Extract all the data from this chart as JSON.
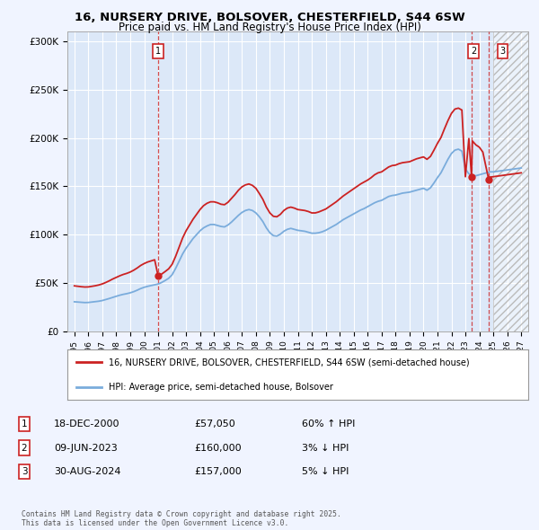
{
  "title_line1": "16, NURSERY DRIVE, BOLSOVER, CHESTERFIELD, S44 6SW",
  "title_line2": "Price paid vs. HM Land Registry's House Price Index (HPI)",
  "background_color": "#f0f4ff",
  "plot_bg_color": "#dce8f8",
  "grid_color": "#ffffff",
  "hpi_color": "#7aacdc",
  "price_color": "#cc2222",
  "legend_label_price": "16, NURSERY DRIVE, BOLSOVER, CHESTERFIELD, S44 6SW (semi-detached house)",
  "legend_label_hpi": "HPI: Average price, semi-detached house, Bolsover",
  "footer": "Contains HM Land Registry data © Crown copyright and database right 2025.\nThis data is licensed under the Open Government Licence v3.0.",
  "transactions": [
    {
      "num": 1,
      "date": "18-DEC-2000",
      "price": 57050,
      "hpi_pct": "60% ↑ HPI",
      "x_year": 2001.0
    },
    {
      "num": 2,
      "date": "09-JUN-2023",
      "price": 160000,
      "hpi_pct": "3% ↓ HPI",
      "x_year": 2023.44
    },
    {
      "num": 3,
      "date": "30-AUG-2024",
      "price": 157000,
      "hpi_pct": "5% ↓ HPI",
      "x_year": 2024.67
    }
  ],
  "hpi_data_years": [
    1995.0,
    1995.25,
    1995.5,
    1995.75,
    1996.0,
    1996.25,
    1996.5,
    1996.75,
    1997.0,
    1997.25,
    1997.5,
    1997.75,
    1998.0,
    1998.25,
    1998.5,
    1998.75,
    1999.0,
    1999.25,
    1999.5,
    1999.75,
    2000.0,
    2000.25,
    2000.5,
    2000.75,
    2001.0,
    2001.25,
    2001.5,
    2001.75,
    2002.0,
    2002.25,
    2002.5,
    2002.75,
    2003.0,
    2003.25,
    2003.5,
    2003.75,
    2004.0,
    2004.25,
    2004.5,
    2004.75,
    2005.0,
    2005.25,
    2005.5,
    2005.75,
    2006.0,
    2006.25,
    2006.5,
    2006.75,
    2007.0,
    2007.25,
    2007.5,
    2007.75,
    2008.0,
    2008.25,
    2008.5,
    2008.75,
    2009.0,
    2009.25,
    2009.5,
    2009.75,
    2010.0,
    2010.25,
    2010.5,
    2010.75,
    2011.0,
    2011.25,
    2011.5,
    2011.75,
    2012.0,
    2012.25,
    2012.5,
    2012.75,
    2013.0,
    2013.25,
    2013.5,
    2013.75,
    2014.0,
    2014.25,
    2014.5,
    2014.75,
    2015.0,
    2015.25,
    2015.5,
    2015.75,
    2016.0,
    2016.25,
    2016.5,
    2016.75,
    2017.0,
    2017.25,
    2017.5,
    2017.75,
    2018.0,
    2018.25,
    2018.5,
    2018.75,
    2019.0,
    2019.25,
    2019.5,
    2019.75,
    2020.0,
    2020.25,
    2020.5,
    2020.75,
    2021.0,
    2021.25,
    2021.5,
    2021.75,
    2022.0,
    2022.25,
    2022.5,
    2022.75,
    2023.0,
    2023.25,
    2023.5,
    2023.75,
    2024.0,
    2024.25,
    2024.5,
    2024.75,
    2025.0,
    2025.25,
    2025.5,
    2025.75,
    2026.0,
    2026.25,
    2026.5,
    2026.75,
    2027.0
  ],
  "hpi_data_values": [
    30500,
    30200,
    29900,
    29700,
    29800,
    30200,
    30600,
    31100,
    31800,
    32800,
    33900,
    35100,
    36200,
    37300,
    38200,
    38900,
    39800,
    41000,
    42500,
    44200,
    45500,
    46500,
    47300,
    48000,
    48900,
    50500,
    52500,
    54800,
    58500,
    65000,
    72500,
    80000,
    86000,
    91000,
    96000,
    100000,
    104000,
    107000,
    109000,
    110500,
    110500,
    109500,
    108500,
    108000,
    110000,
    113000,
    116500,
    120000,
    123000,
    125000,
    126000,
    125000,
    122500,
    118500,
    113500,
    107000,
    102000,
    99000,
    98500,
    100500,
    103500,
    105500,
    106500,
    105500,
    104500,
    104000,
    103500,
    102500,
    101500,
    101500,
    102000,
    103000,
    104500,
    106500,
    108500,
    110500,
    113000,
    115500,
    117500,
    119500,
    121500,
    123500,
    125500,
    127000,
    129000,
    131000,
    133000,
    134500,
    135500,
    137500,
    139500,
    140500,
    141000,
    142000,
    143000,
    143500,
    144000,
    145000,
    146000,
    147000,
    148000,
    146000,
    148500,
    153500,
    159000,
    164000,
    171000,
    178000,
    184000,
    187500,
    188500,
    186500,
    168000,
    163000,
    161000,
    161000,
    162000,
    163000,
    164000,
    165000,
    165000,
    165500,
    166000,
    166500,
    167000,
    167500,
    168000,
    168500,
    169000
  ],
  "price_hpi_years": [
    1995.0,
    1995.25,
    1995.5,
    1995.75,
    1996.0,
    1996.25,
    1996.5,
    1996.75,
    1997.0,
    1997.25,
    1997.5,
    1997.75,
    1998.0,
    1998.25,
    1998.5,
    1998.75,
    1999.0,
    1999.25,
    1999.5,
    1999.75,
    2000.0,
    2000.25,
    2000.5,
    2000.75,
    2001.0,
    2001.25,
    2001.5,
    2001.75,
    2002.0,
    2002.25,
    2002.5,
    2002.75,
    2003.0,
    2003.25,
    2003.5,
    2003.75,
    2004.0,
    2004.25,
    2004.5,
    2004.75,
    2005.0,
    2005.25,
    2005.5,
    2005.75,
    2006.0,
    2006.25,
    2006.5,
    2006.75,
    2007.0,
    2007.25,
    2007.5,
    2007.75,
    2008.0,
    2008.25,
    2008.5,
    2008.75,
    2009.0,
    2009.25,
    2009.5,
    2009.75,
    2010.0,
    2010.25,
    2010.5,
    2010.75,
    2011.0,
    2011.25,
    2011.5,
    2011.75,
    2012.0,
    2012.25,
    2012.5,
    2012.75,
    2013.0,
    2013.25,
    2013.5,
    2013.75,
    2014.0,
    2014.25,
    2014.5,
    2014.75,
    2015.0,
    2015.25,
    2015.5,
    2015.75,
    2016.0,
    2016.25,
    2016.5,
    2016.75,
    2017.0,
    2017.25,
    2017.5,
    2017.75,
    2018.0,
    2018.25,
    2018.5,
    2018.75,
    2019.0,
    2019.25,
    2019.5,
    2019.75,
    2020.0,
    2020.25,
    2020.5,
    2020.75,
    2021.0,
    2021.25,
    2021.5,
    2021.75,
    2022.0,
    2022.25,
    2022.5,
    2022.75,
    2023.0,
    2023.25,
    2023.44,
    2023.5,
    2023.75,
    2024.0,
    2024.25,
    2024.67,
    2024.75,
    2025.0,
    2025.25,
    2025.5,
    2025.75,
    2026.0,
    2026.25,
    2026.5,
    2026.75,
    2027.0
  ],
  "price_hpi_values": [
    47000,
    46500,
    46100,
    45800,
    45900,
    46500,
    47100,
    47900,
    49000,
    50500,
    52200,
    54100,
    55800,
    57400,
    58800,
    59900,
    61300,
    63200,
    65500,
    68100,
    70100,
    71700,
    72900,
    74000,
    57050,
    59200,
    61800,
    64600,
    69300,
    77500,
    87000,
    96500,
    104000,
    110000,
    116000,
    121000,
    126000,
    130000,
    132500,
    134000,
    134000,
    133000,
    131500,
    131000,
    133500,
    137500,
    141500,
    146000,
    149500,
    151500,
    152500,
    151000,
    148000,
    142500,
    136500,
    128500,
    122500,
    119000,
    118500,
    121000,
    125000,
    127500,
    128500,
    127500,
    126000,
    125500,
    125000,
    124000,
    122500,
    122500,
    123500,
    125000,
    126500,
    129000,
    131500,
    134000,
    137000,
    140000,
    142500,
    145000,
    147500,
    150000,
    152500,
    154500,
    156500,
    159000,
    162000,
    164000,
    165000,
    167500,
    170000,
    171500,
    172000,
    173500,
    174500,
    175000,
    175500,
    177000,
    178500,
    179500,
    180500,
    178000,
    181000,
    187500,
    194500,
    200500,
    209500,
    218000,
    225500,
    230000,
    231000,
    229000,
    160000,
    199500,
    160000,
    197000,
    193000,
    190500,
    185500,
    157000,
    159500,
    160000,
    160500,
    161000,
    161500,
    162000,
    162500,
    163000,
    163500,
    164000
  ],
  "yticks": [
    0,
    50000,
    100000,
    150000,
    200000,
    250000,
    300000
  ],
  "ytick_labels": [
    "£0",
    "£50K",
    "£100K",
    "£150K",
    "£200K",
    "£250K",
    "£300K"
  ],
  "xlim": [
    1994.5,
    2027.5
  ],
  "ylim": [
    0,
    310000
  ],
  "hatch_start": 2025.0,
  "hatch_end": 2027.5
}
